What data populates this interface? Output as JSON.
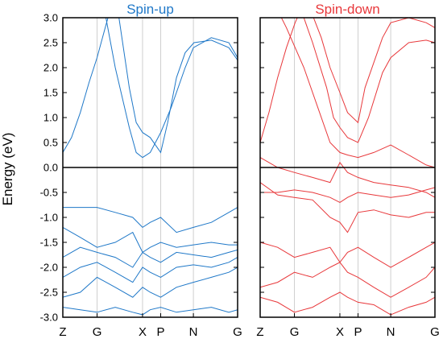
{
  "chart_data": {
    "type": "line",
    "ylabel": "Energy (eV)",
    "ylim": [
      -3.0,
      3.0
    ],
    "yticks": [
      3.0,
      2.5,
      2.0,
      1.5,
      1.0,
      0.5,
      0.0,
      -0.5,
      -1.0,
      -1.5,
      -2.0,
      -2.5,
      -3.0
    ],
    "fermi_level": 0.0,
    "grid": "vertical lines at high-symmetry points",
    "panels": [
      {
        "title": "Spin-up",
        "color": "#1f78c8",
        "kpoints": [
          "Z",
          "G",
          "X",
          "P",
          "N",
          "G"
        ],
        "kpoint_positions": [
          0,
          0.196,
          0.456,
          0.56,
          0.747,
          1.0
        ],
        "bands": [
          {
            "x": [
              0,
              0.05,
              0.1,
              0.15,
              0.196,
              0.25,
              0.3,
              0.33
            ],
            "y": [
              0.3,
              0.6,
              1.1,
              1.7,
              2.2,
              2.9,
              3.5,
              4.0
            ]
          },
          {
            "x": [
              0.22,
              0.3,
              0.38,
              0.42,
              0.456,
              0.5,
              0.56,
              0.62,
              0.7,
              0.747,
              0.85,
              0.95,
              1.0
            ],
            "y": [
              3.5,
              2.0,
              0.8,
              0.3,
              0.2,
              0.3,
              0.7,
              1.2,
              2.0,
              2.4,
              2.6,
              2.5,
              2.2
            ]
          },
          {
            "x": [
              0.3,
              0.38,
              0.42,
              0.456,
              0.5,
              0.56,
              0.6,
              0.65,
              0.7,
              0.75,
              0.85,
              0.95,
              1.0
            ],
            "y": [
              3.5,
              1.6,
              0.9,
              0.7,
              0.6,
              0.3,
              0.9,
              1.8,
              2.3,
              2.5,
              2.55,
              2.4,
              2.15
            ]
          },
          {
            "x": [
              0,
              0.1,
              0.196,
              0.3,
              0.4,
              0.456,
              0.5,
              0.56,
              0.65,
              0.747,
              0.85,
              0.95,
              1.0
            ],
            "y": [
              -0.8,
              -0.8,
              -0.8,
              -0.9,
              -1.0,
              -1.2,
              -1.1,
              -1.0,
              -1.3,
              -1.2,
              -1.1,
              -0.9,
              -0.8
            ]
          },
          {
            "x": [
              0,
              0.1,
              0.196,
              0.3,
              0.4,
              0.456,
              0.5,
              0.56,
              0.65,
              0.747,
              0.85,
              0.95,
              1.0
            ],
            "y": [
              -1.2,
              -1.4,
              -1.6,
              -1.5,
              -1.3,
              -1.7,
              -1.6,
              -1.5,
              -1.6,
              -1.55,
              -1.5,
              -1.55,
              -1.55
            ]
          },
          {
            "x": [
              0,
              0.1,
              0.196,
              0.3,
              0.4,
              0.456,
              0.5,
              0.56,
              0.65,
              0.747,
              0.85,
              0.95,
              1.0
            ],
            "y": [
              -1.8,
              -1.6,
              -1.7,
              -1.8,
              -2.0,
              -1.7,
              -1.8,
              -1.9,
              -1.7,
              -1.75,
              -1.8,
              -1.7,
              -1.65
            ]
          },
          {
            "x": [
              0,
              0.1,
              0.196,
              0.3,
              0.4,
              0.456,
              0.5,
              0.56,
              0.65,
              0.747,
              0.85,
              0.95,
              1.0
            ],
            "y": [
              -2.2,
              -2.0,
              -1.9,
              -2.1,
              -2.3,
              -2.0,
              -2.1,
              -2.2,
              -2.0,
              -1.95,
              -2.0,
              -1.9,
              -1.8
            ]
          },
          {
            "x": [
              0,
              0.1,
              0.196,
              0.3,
              0.4,
              0.456,
              0.5,
              0.56,
              0.65,
              0.747,
              0.85,
              0.95,
              1.0
            ],
            "y": [
              -2.6,
              -2.5,
              -2.2,
              -2.4,
              -2.6,
              -2.4,
              -2.5,
              -2.6,
              -2.4,
              -2.3,
              -2.2,
              -2.1,
              -2.0
            ]
          },
          {
            "x": [
              0,
              0.1,
              0.196,
              0.3,
              0.4,
              0.456,
              0.5,
              0.56,
              0.65,
              0.747,
              0.85,
              0.95,
              1.0
            ],
            "y": [
              -2.8,
              -2.85,
              -2.9,
              -2.8,
              -2.9,
              -2.95,
              -2.85,
              -2.8,
              -2.9,
              -2.85,
              -2.8,
              -2.9,
              -2.85
            ]
          }
        ]
      },
      {
        "title": "Spin-down",
        "color": "#e8383b",
        "kpoints": [
          "Z",
          "G",
          "X",
          "P",
          "N",
          "G"
        ],
        "kpoint_positions": [
          0,
          0.196,
          0.456,
          0.56,
          0.747,
          1.0
        ],
        "bands": [
          {
            "x": [
              0,
              0.05,
              0.1,
              0.15,
              0.2,
              0.25
            ],
            "y": [
              0.5,
              1.1,
              1.8,
              2.4,
              2.9,
              3.3
            ]
          },
          {
            "x": [
              0.05,
              0.15,
              0.25,
              0.33,
              0.4,
              0.456,
              0.5,
              0.56,
              0.65,
              0.747,
              0.85,
              0.95,
              1.0
            ],
            "y": [
              3.5,
              2.8,
              2.0,
              1.2,
              0.5,
              0.3,
              0.25,
              0.2,
              0.3,
              0.45,
              0.25,
              0.05,
              0.0
            ]
          },
          {
            "x": [
              0.2,
              0.3,
              0.38,
              0.42,
              0.456,
              0.5,
              0.56,
              0.62,
              0.7,
              0.747,
              0.85,
              0.95,
              1.0
            ],
            "y": [
              3.5,
              2.5,
              1.6,
              1.0,
              0.8,
              0.6,
              0.5,
              1.0,
              1.9,
              2.2,
              2.5,
              2.55,
              2.5
            ]
          },
          {
            "x": [
              0.25,
              0.35,
              0.4,
              0.456,
              0.5,
              0.56,
              0.6,
              0.7,
              0.747,
              0.85,
              0.95,
              1.0
            ],
            "y": [
              3.5,
              2.6,
              2.0,
              1.5,
              1.1,
              0.9,
              1.6,
              2.6,
              2.9,
              3.0,
              2.9,
              2.8
            ]
          },
          {
            "x": [
              0,
              0.1,
              0.196,
              0.3,
              0.4,
              0.456,
              0.5,
              0.56,
              0.65,
              0.747,
              0.85,
              0.95,
              1.0
            ],
            "y": [
              0.2,
              0.0,
              -0.1,
              -0.2,
              -0.3,
              0.1,
              -0.1,
              -0.2,
              -0.3,
              -0.35,
              -0.4,
              -0.5,
              -0.6
            ]
          },
          {
            "x": [
              0,
              0.1,
              0.196,
              0.3,
              0.4,
              0.456,
              0.5,
              0.56,
              0.65,
              0.747,
              0.85,
              0.95,
              1.0
            ],
            "y": [
              -0.5,
              -0.5,
              -0.45,
              -0.5,
              -0.6,
              -0.7,
              -0.6,
              -0.5,
              -0.55,
              -0.6,
              -0.55,
              -0.45,
              -0.4
            ]
          },
          {
            "x": [
              0,
              0.1,
              0.196,
              0.3,
              0.4,
              0.456,
              0.5,
              0.56,
              0.65,
              0.747,
              0.85,
              0.95,
              1.0
            ],
            "y": [
              -0.3,
              -0.55,
              -0.6,
              -0.65,
              -1.0,
              -1.1,
              -1.3,
              -0.9,
              -0.85,
              -0.95,
              -1.0,
              -0.9,
              -0.9
            ]
          },
          {
            "x": [
              0,
              0.1,
              0.196,
              0.3,
              0.4,
              0.456,
              0.5,
              0.56,
              0.65,
              0.747,
              0.85,
              0.95,
              1.0
            ],
            "y": [
              -1.5,
              -1.6,
              -1.8,
              -1.7,
              -1.6,
              -1.9,
              -1.7,
              -1.6,
              -1.8,
              -2.0,
              -1.8,
              -1.6,
              -1.5
            ]
          },
          {
            "x": [
              0,
              0.1,
              0.196,
              0.3,
              0.4,
              0.456,
              0.5,
              0.56,
              0.65,
              0.747,
              0.85,
              0.95,
              1.0
            ],
            "y": [
              -2.4,
              -2.3,
              -2.1,
              -2.2,
              -2.0,
              -1.9,
              -2.1,
              -2.2,
              -2.4,
              -2.6,
              -2.4,
              -2.2,
              -2.0
            ]
          },
          {
            "x": [
              0,
              0.1,
              0.196,
              0.3,
              0.4,
              0.456,
              0.5,
              0.56,
              0.65,
              0.747,
              0.85,
              0.95,
              1.0
            ],
            "y": [
              -2.6,
              -2.7,
              -2.9,
              -2.8,
              -2.6,
              -2.5,
              -2.6,
              -2.7,
              -2.75,
              -2.95,
              -2.8,
              -2.7,
              -2.6
            ]
          }
        ]
      }
    ]
  }
}
